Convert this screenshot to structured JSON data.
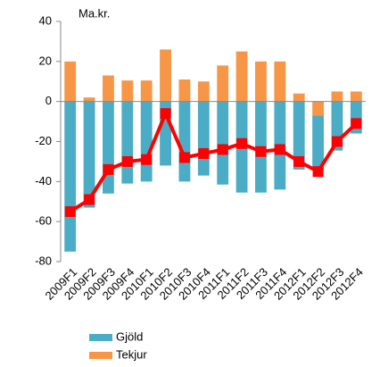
{
  "chart_data": {
    "type": "bar",
    "unit_label": "Ma.kr.",
    "categories": [
      "2009F1",
      "2009F2",
      "2009F3",
      "2009F4",
      "2010F1",
      "2010F2",
      "2010F3",
      "2010F4",
      "2011F1",
      "2011F2",
      "2011F3",
      "2011F4",
      "2012F1",
      "2012F2",
      "2012F3",
      "2012F4"
    ],
    "series": [
      {
        "name": "Gjöld",
        "color": "#4bacc6",
        "values": [
          -75,
          -53,
          -46,
          -41,
          -40,
          -32,
          -40,
          -37,
          -41.5,
          -45.5,
          -45.5,
          -44,
          -34,
          -27,
          -24.5,
          -16
        ]
      },
      {
        "name": "Tekjur",
        "color": "#f79646",
        "values": [
          20,
          2,
          13,
          10.5,
          10.5,
          26,
          11,
          10,
          18,
          25,
          20,
          20,
          4,
          -7,
          5,
          5
        ]
      },
      {
        "type": "line",
        "color": "#ff0000",
        "values": [
          -55,
          -49,
          -34,
          -30,
          -29,
          -6,
          -28,
          -26,
          -24,
          -21,
          -25,
          -24,
          -30,
          -35,
          -20,
          -11
        ]
      }
    ],
    "ylim": [
      -80,
      40
    ],
    "yticks": [
      -80,
      -60,
      -40,
      -20,
      0,
      20,
      40
    ]
  }
}
